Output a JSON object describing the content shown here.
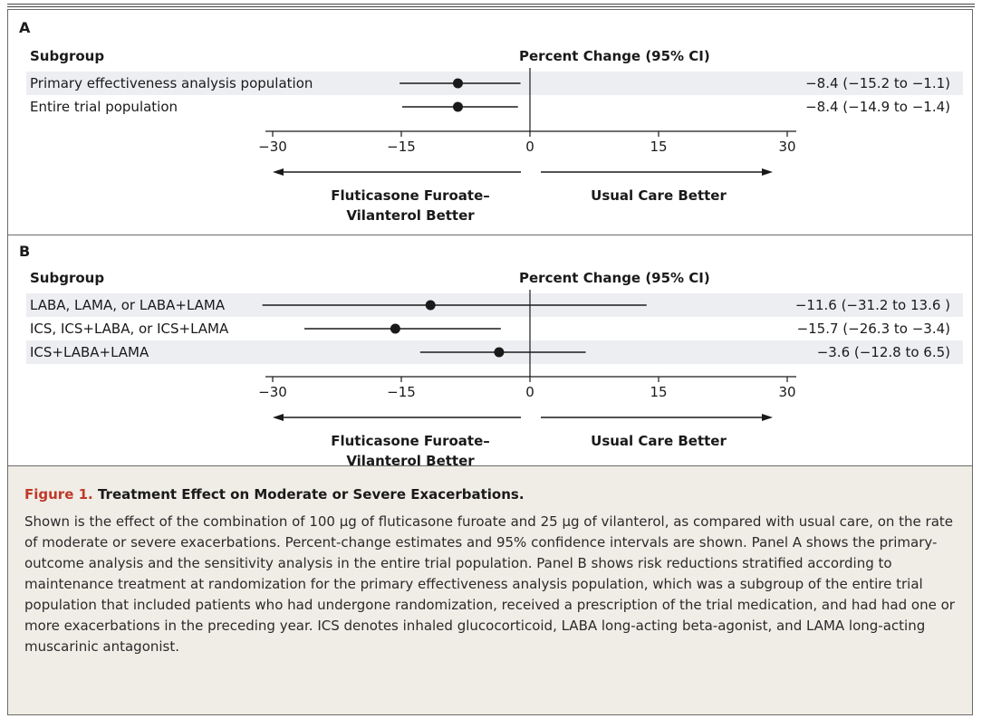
{
  "colors": {
    "figure_label": "#c0392b",
    "row_shade": "#eceef2",
    "caption_bg": "#f0ede6"
  },
  "caption": {
    "figure_label": "Figure 1.",
    "title": "Treatment Effect on Moderate or Severe Exacerbations.",
    "body": "Shown is the effect of the combination of 100 µg of fluticasone furoate and 25 µg of vilanterol, as compared with usual care, on the rate of moderate or severe exacerbations. Percent-change estimates and 95% confidence intervals are shown. Panel A shows the primary-outcome analysis and the sensitivity analysis in the entire trial population. Panel B shows risk reductions stratified according to maintenance treatment at randomization for the primary effectiveness analysis population, which was a subgroup of the entire trial population that included patients who had undergone randomization, received a prescription of the trial medication, and had had one or more exacerbations in the preceding year. ICS denotes inhaled glucocorticoid, LABA long-acting beta-agonist, and LAMA long-acting muscarinic antagonist."
  },
  "chart_data": [
    {
      "type": "forest",
      "panel": "A",
      "subgroup_header": "Subgroup",
      "estimate_header": "Percent Change (95% CI)",
      "xlim": [
        -30,
        30
      ],
      "ticks": [
        -30,
        -15,
        0,
        15,
        30
      ],
      "left_label": [
        "Fluticasone Furoate–",
        "Vilanterol Better"
      ],
      "right_label": "Usual Care Better",
      "rows": [
        {
          "label": "Primary effectiveness analysis population",
          "estimate": -8.4,
          "lower": -15.2,
          "upper": -1.1,
          "text": "−8.4 (−15.2 to −1.1)",
          "shaded": true
        },
        {
          "label": "Entire trial population",
          "estimate": -8.4,
          "lower": -14.9,
          "upper": -1.4,
          "text": "−8.4 (−14.9 to −1.4)",
          "shaded": false
        }
      ]
    },
    {
      "type": "forest",
      "panel": "B",
      "subgroup_header": "Subgroup",
      "estimate_header": "Percent Change (95% CI)",
      "xlim": [
        -30,
        30
      ],
      "ticks": [
        -30,
        -15,
        0,
        15,
        30
      ],
      "left_label": [
        "Fluticasone Furoate–",
        "Vilanterol Better"
      ],
      "right_label": "Usual Care Better",
      "rows": [
        {
          "label": "LABA, LAMA, or LABA+LAMA",
          "estimate": -11.6,
          "lower": -31.2,
          "upper": 13.6,
          "text": "−11.6 (−31.2 to 13.6 )",
          "shaded": true
        },
        {
          "label": "ICS, ICS+LABA, or ICS+LAMA",
          "estimate": -15.7,
          "lower": -26.3,
          "upper": -3.4,
          "text": "−15.7 (−26.3 to −3.4)",
          "shaded": false
        },
        {
          "label": "ICS+LABA+LAMA",
          "estimate": -3.6,
          "lower": -12.8,
          "upper": 6.5,
          "text": "−3.6 (−12.8 to 6.5)",
          "shaded": true
        }
      ]
    }
  ]
}
